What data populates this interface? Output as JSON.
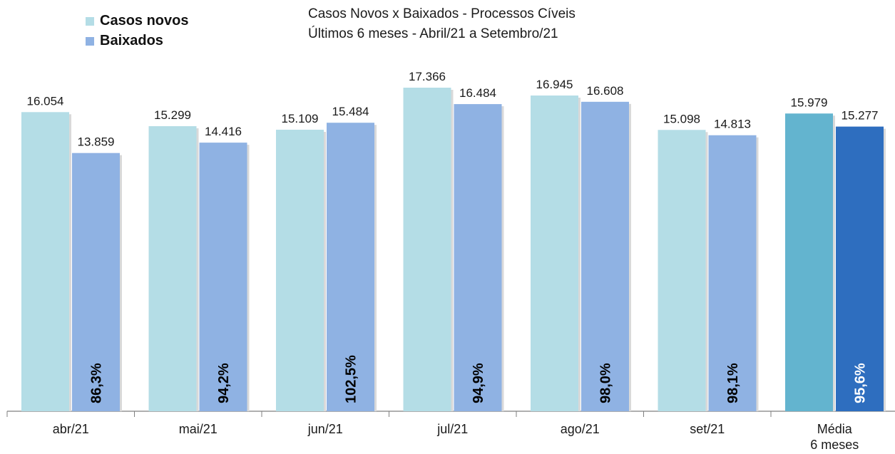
{
  "chart_data": {
    "type": "bar",
    "title": "Casos Novos x Baixados - Processos Cíveis",
    "subtitle": "Últimos 6 meses - Abril/21 a Setembro/21",
    "categories": [
      "abr/21",
      "mai/21",
      "jun/21",
      "jul/21",
      "ago/21",
      "set/21",
      "Média\n6 meses"
    ],
    "series": [
      {
        "name": "Casos novos",
        "values": [
          16054,
          15299,
          15109,
          17366,
          16945,
          15098,
          15979
        ],
        "labels": [
          "16.054",
          "15.299",
          "15.109",
          "17.366",
          "16.945",
          "15.098",
          "15.979"
        ]
      },
      {
        "name": "Baixados",
        "values": [
          13859,
          14416,
          15484,
          16484,
          16608,
          14813,
          15277
        ],
        "labels": [
          "13.859",
          "14.416",
          "15.484",
          "16.484",
          "16.608",
          "14.813",
          "15.277"
        ]
      }
    ],
    "ratios": [
      "86,3%",
      "94,2%",
      "102,5%",
      "94,9%",
      "98,0%",
      "98,1%",
      "95,6%"
    ],
    "ylim": [
      0,
      17366
    ],
    "legend_position": "top-left",
    "grid": false
  },
  "colors": {
    "casos_novos": "#b4dde6",
    "baixados": "#8fb2e3",
    "casos_novos_media": "#63b4cf",
    "baixados_media": "#2e6ebf",
    "ratio_text": "#000000",
    "ratio_text_media": "#ffffff"
  }
}
